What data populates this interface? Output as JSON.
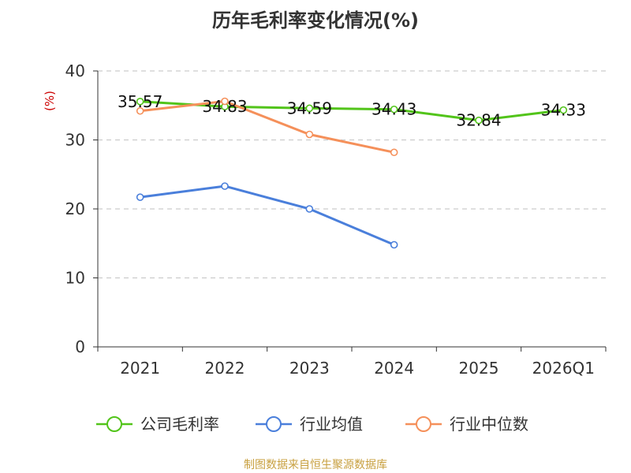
{
  "chart_data": {
    "type": "line",
    "title": "历年毛利率变化情况(%)",
    "ylabel": "(%)",
    "xlabel": "",
    "categories": [
      "2021",
      "2022",
      "2023",
      "2024",
      "2025",
      "2026Q1"
    ],
    "ylim": [
      0,
      40
    ],
    "yticks": [
      0,
      10,
      20,
      30,
      40
    ],
    "grid": true,
    "legend_position": "bottom",
    "series": [
      {
        "name": "公司毛利率",
        "color": "#52c41a",
        "values": [
          35.57,
          34.83,
          34.59,
          34.43,
          32.84,
          34.33
        ],
        "show_labels": true
      },
      {
        "name": "行业均值",
        "color": "#4a7fdb",
        "values": [
          21.7,
          23.3,
          20.0,
          14.8,
          null,
          null
        ],
        "show_labels": false
      },
      {
        "name": "行业中位数",
        "color": "#f5905a",
        "values": [
          34.2,
          35.6,
          30.8,
          28.2,
          null,
          null
        ],
        "show_labels": false
      }
    ],
    "source": "制图数据来自恒生聚源数据库"
  }
}
